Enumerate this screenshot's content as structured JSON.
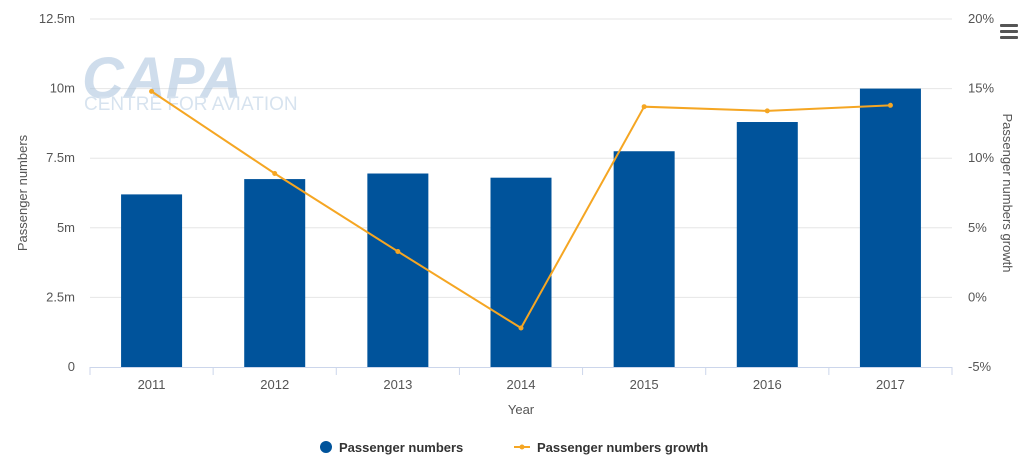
{
  "chart_data": {
    "type": "bar",
    "categories": [
      "2011",
      "2012",
      "2013",
      "2014",
      "2015",
      "2016",
      "2017"
    ],
    "series": [
      {
        "name": "Passenger numbers",
        "type": "bar",
        "axis": "left",
        "color": "#00539b",
        "values": [
          6.2,
          6.75,
          6.95,
          6.8,
          7.75,
          8.8,
          10.0
        ]
      },
      {
        "name": "Passenger numbers growth",
        "type": "line",
        "axis": "right",
        "color": "#f5a623",
        "values": [
          14.8,
          8.9,
          3.3,
          -2.2,
          13.7,
          13.4,
          13.8
        ]
      }
    ],
    "xlabel": "Year",
    "ylabel": "Passenger numbers",
    "ylabel_right": "Passenger numbers growth",
    "ylim": [
      0,
      12.5
    ],
    "ylim_right": [
      -5,
      20
    ],
    "yticks": [
      "0",
      "2.5m",
      "5m",
      "7.5m",
      "10m",
      "12.5m"
    ],
    "yticks_right": [
      "-5%",
      "0%",
      "5%",
      "10%",
      "15%",
      "20%"
    ],
    "grid": true,
    "legend_position": "bottom-center"
  },
  "watermark": {
    "logo": "CAPA",
    "tagline": "CENTRE FOR AVIATION"
  },
  "menu_icon": "hamburger-menu-icon"
}
